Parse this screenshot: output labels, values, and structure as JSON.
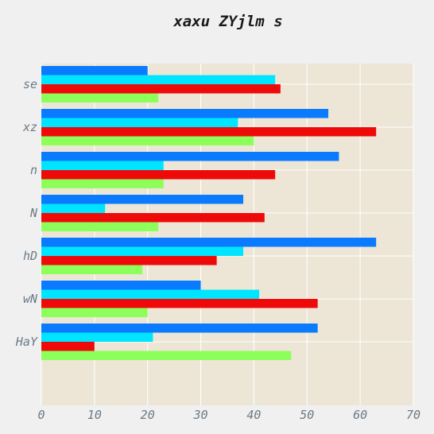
{
  "chart_data": {
    "type": "bar",
    "orientation": "horizontal",
    "title": "xaxu ZYjlm s",
    "xlabel": "",
    "ylabel": "",
    "categories": [
      "se",
      "xz",
      "n",
      "N",
      "hD",
      "wN",
      "HaY"
    ],
    "series": [
      {
        "color": "#0a7bff",
        "values": [
          20,
          54,
          56,
          38,
          63,
          30,
          52
        ]
      },
      {
        "color": "#00e5ff",
        "values": [
          44,
          37,
          23,
          12,
          38,
          41,
          21
        ]
      },
      {
        "color": "#ef0a0a",
        "values": [
          45,
          63,
          44,
          42,
          33,
          52,
          10
        ]
      },
      {
        "color": "#8cff5a",
        "values": [
          22,
          40,
          23,
          22,
          19,
          20,
          47
        ]
      }
    ],
    "xlim": [
      0,
      70
    ],
    "xticks": [
      0,
      10,
      20,
      30,
      40,
      50,
      60,
      70
    ],
    "grid": true,
    "plot_background": "#ede6d6",
    "grid_color": "#ffffff"
  }
}
